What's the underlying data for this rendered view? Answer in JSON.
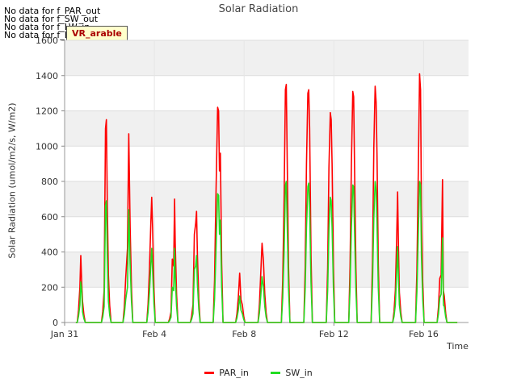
{
  "no_data_messages": [
    "No data for f_PAR_out",
    "No data for f_SW_out",
    "No data for f_LW_in",
    "No data for f_LW_out"
  ],
  "badge_text": "VR_arable",
  "chart_data": {
    "type": "line",
    "title": "Solar Radiation",
    "xlabel": "Time",
    "ylabel": "Solar Radiation (umol/m2/s, W/m2)",
    "xlim": [
      0,
      18
    ],
    "ylim": [
      0,
      1600
    ],
    "x_ticks": [
      {
        "day": 0,
        "label": "Jan 31"
      },
      {
        "day": 4,
        "label": "Feb 4"
      },
      {
        "day": 8,
        "label": "Feb 8"
      },
      {
        "day": 12,
        "label": "Feb 12"
      },
      {
        "day": 16,
        "label": "Feb 16"
      }
    ],
    "y_ticks": [
      0,
      200,
      400,
      600,
      800,
      1000,
      1200,
      1400,
      1600
    ],
    "grid": true,
    "legend_position": "bottom-center",
    "data_start_day": 0.5,
    "data_end_day": 17.5,
    "series": [
      {
        "name": "PAR_in",
        "color": "#ff0000",
        "daily_peaks": [
          {
            "day": 0.75,
            "peaks": [
              [
                0.68,
                200
              ],
              [
                0.72,
                380
              ],
              [
                0.76,
                230
              ],
              [
                0.8,
                120
              ]
            ]
          },
          {
            "day": 1.85,
            "peaks": [
              [
                1.76,
                180
              ],
              [
                1.82,
                1100
              ],
              [
                1.86,
                1150
              ],
              [
                1.9,
                680
              ],
              [
                1.95,
                270
              ]
            ]
          },
          {
            "day": 2.85,
            "peaks": [
              [
                2.72,
                250
              ],
              [
                2.8,
                420
              ],
              [
                2.86,
                1070
              ],
              [
                2.92,
                540
              ]
            ]
          },
          {
            "day": 3.85,
            "peaks": [
              [
                3.78,
                300
              ],
              [
                3.84,
                560
              ],
              [
                3.88,
                710
              ],
              [
                3.92,
                540
              ]
            ]
          },
          {
            "day": 4.85,
            "peaks": [
              [
                4.74,
                60
              ],
              [
                4.8,
                360
              ],
              [
                4.86,
                320
              ],
              [
                4.9,
                700
              ],
              [
                4.93,
                450
              ]
            ]
          },
          {
            "day": 5.85,
            "peaks": [
              [
                5.72,
                100
              ],
              [
                5.78,
                500
              ],
              [
                5.84,
                560
              ],
              [
                5.88,
                630
              ],
              [
                5.92,
                380
              ]
            ]
          },
          {
            "day": 6.85,
            "peaks": [
              [
                6.74,
                690
              ],
              [
                6.82,
                1220
              ],
              [
                6.86,
                1200
              ],
              [
                6.9,
                860
              ],
              [
                6.94,
                960
              ]
            ]
          },
          {
            "day": 7.85,
            "peaks": [
              [
                7.74,
                140
              ],
              [
                7.8,
                280
              ],
              [
                7.86,
                130
              ],
              [
                7.92,
                100
              ]
            ]
          },
          {
            "day": 8.85,
            "peaks": [
              [
                8.74,
                280
              ],
              [
                8.8,
                450
              ],
              [
                8.86,
                350
              ],
              [
                8.92,
                160
              ]
            ]
          },
          {
            "day": 9.85,
            "peaks": [
              [
                9.78,
                700
              ],
              [
                9.84,
                1320
              ],
              [
                9.88,
                1350
              ],
              [
                9.92,
                900
              ]
            ]
          },
          {
            "day": 10.85,
            "peaks": [
              [
                10.78,
                900
              ],
              [
                10.84,
                1300
              ],
              [
                10.88,
                1320
              ],
              [
                10.92,
                1100
              ]
            ]
          },
          {
            "day": 11.85,
            "peaks": [
              [
                11.78,
                880
              ],
              [
                11.84,
                1190
              ],
              [
                11.88,
                1150
              ],
              [
                11.92,
                900
              ]
            ]
          },
          {
            "day": 12.85,
            "peaks": [
              [
                12.78,
                900
              ],
              [
                12.84,
                1310
              ],
              [
                12.88,
                1280
              ],
              [
                12.92,
                880
              ]
            ]
          },
          {
            "day": 13.85,
            "peaks": [
              [
                13.78,
                1000
              ],
              [
                13.84,
                1340
              ],
              [
                13.88,
                1250
              ],
              [
                13.92,
                950
              ]
            ]
          },
          {
            "day": 14.85,
            "peaks": [
              [
                14.74,
                180
              ],
              [
                14.8,
                490
              ],
              [
                14.84,
                740
              ],
              [
                14.88,
                420
              ],
              [
                14.92,
                170
              ]
            ]
          },
          {
            "day": 15.85,
            "peaks": [
              [
                15.76,
                850
              ],
              [
                15.82,
                1410
              ],
              [
                15.86,
                1320
              ],
              [
                15.9,
                650
              ]
            ]
          },
          {
            "day": 16.85,
            "peaks": [
              [
                16.72,
                250
              ],
              [
                16.78,
                270
              ],
              [
                16.84,
                810
              ],
              [
                16.88,
                180
              ],
              [
                16.92,
                150
              ]
            ]
          }
        ]
      },
      {
        "name": "SW_in",
        "color": "#22dd22",
        "daily_peaks": [
          {
            "day": 0.75,
            "peaks": [
              [
                0.68,
                100
              ],
              [
                0.72,
                230
              ],
              [
                0.76,
                180
              ],
              [
                0.8,
                60
              ]
            ]
          },
          {
            "day": 1.85,
            "peaks": [
              [
                1.76,
                90
              ],
              [
                1.82,
                660
              ],
              [
                1.86,
                690
              ],
              [
                1.9,
                380
              ],
              [
                1.95,
                120
              ]
            ]
          },
          {
            "day": 2.85,
            "peaks": [
              [
                2.72,
                130
              ],
              [
                2.8,
                200
              ],
              [
                2.86,
                640
              ],
              [
                2.92,
                330
              ]
            ]
          },
          {
            "day": 3.85,
            "peaks": [
              [
                3.78,
                170
              ],
              [
                3.84,
                330
              ],
              [
                3.88,
                420
              ],
              [
                3.92,
                300
              ]
            ]
          },
          {
            "day": 4.85,
            "peaks": [
              [
                4.74,
                30
              ],
              [
                4.8,
                200
              ],
              [
                4.86,
                180
              ],
              [
                4.9,
                420
              ],
              [
                4.93,
                260
              ]
            ]
          },
          {
            "day": 5.85,
            "peaks": [
              [
                5.72,
                50
              ],
              [
                5.78,
                300
              ],
              [
                5.84,
                320
              ],
              [
                5.88,
                380
              ],
              [
                5.92,
                220
              ]
            ]
          },
          {
            "day": 6.85,
            "peaks": [
              [
                6.74,
                380
              ],
              [
                6.82,
                730
              ],
              [
                6.86,
                720
              ],
              [
                6.9,
                500
              ],
              [
                6.94,
                580
              ]
            ]
          },
          {
            "day": 7.85,
            "peaks": [
              [
                7.74,
                70
              ],
              [
                7.8,
                150
              ],
              [
                7.86,
                70
              ],
              [
                7.92,
                50
              ]
            ]
          },
          {
            "day": 8.85,
            "peaks": [
              [
                8.74,
                150
              ],
              [
                8.8,
                260
              ],
              [
                8.86,
                200
              ],
              [
                8.92,
                90
              ]
            ]
          },
          {
            "day": 9.85,
            "peaks": [
              [
                9.78,
                400
              ],
              [
                9.84,
                780
              ],
              [
                9.88,
                800
              ],
              [
                9.92,
                540
              ]
            ]
          },
          {
            "day": 10.85,
            "peaks": [
              [
                10.78,
                540
              ],
              [
                10.84,
                770
              ],
              [
                10.88,
                790
              ],
              [
                10.92,
                650
              ]
            ]
          },
          {
            "day": 11.85,
            "peaks": [
              [
                11.78,
                520
              ],
              [
                11.84,
                710
              ],
              [
                11.88,
                690
              ],
              [
                11.92,
                540
              ]
            ]
          },
          {
            "day": 12.85,
            "peaks": [
              [
                12.78,
                540
              ],
              [
                12.84,
                780
              ],
              [
                12.88,
                770
              ],
              [
                12.92,
                520
              ]
            ]
          },
          {
            "day": 13.85,
            "peaks": [
              [
                13.78,
                600
              ],
              [
                13.84,
                800
              ],
              [
                13.88,
                750
              ],
              [
                13.92,
                560
              ]
            ]
          },
          {
            "day": 14.85,
            "peaks": [
              [
                14.74,
                100
              ],
              [
                14.8,
                290
              ],
              [
                14.84,
                430
              ],
              [
                14.88,
                250
              ],
              [
                14.92,
                100
              ]
            ]
          },
          {
            "day": 15.85,
            "peaks": [
              [
                15.76,
                500
              ],
              [
                15.82,
                800
              ],
              [
                15.86,
                780
              ],
              [
                15.9,
                380
              ]
            ]
          },
          {
            "day": 16.85,
            "peaks": [
              [
                16.72,
                140
              ],
              [
                16.78,
                160
              ],
              [
                16.84,
                480
              ],
              [
                16.88,
                100
              ],
              [
                16.92,
                90
              ]
            ]
          }
        ]
      }
    ]
  }
}
